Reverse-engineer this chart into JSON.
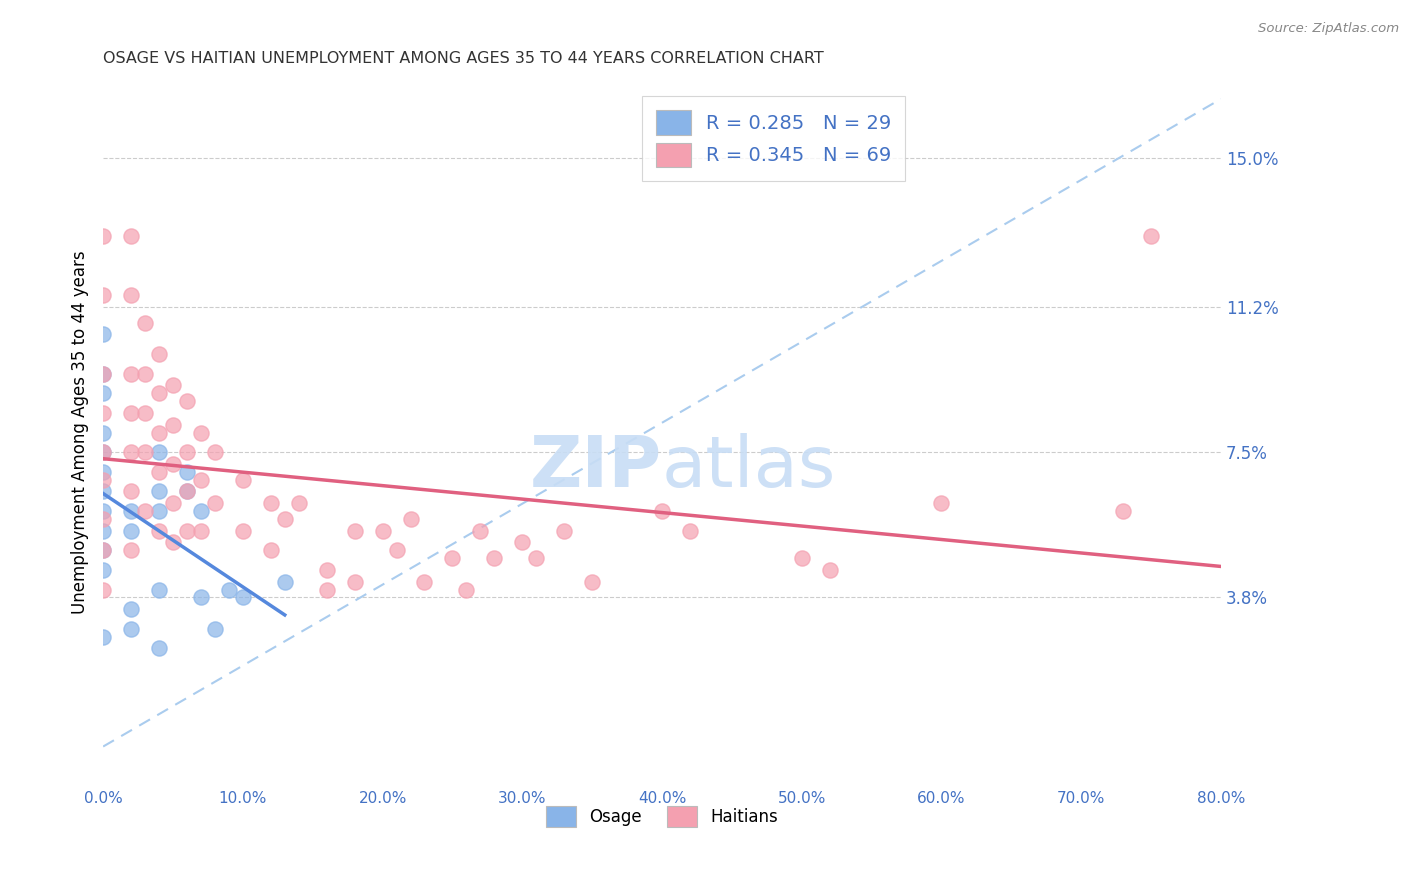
{
  "title": "OSAGE VS HAITIAN UNEMPLOYMENT AMONG AGES 35 TO 44 YEARS CORRELATION CHART",
  "source": "Source: ZipAtlas.com",
  "ylabel": "Unemployment Among Ages 35 to 44 years",
  "xlabel_ticks": [
    "0.0%",
    "10.0%",
    "20.0%",
    "30.0%",
    "40.0%",
    "50.0%",
    "60.0%",
    "70.0%",
    "80.0%"
  ],
  "ytick_labels": [
    "3.8%",
    "7.5%",
    "11.2%",
    "15.0%"
  ],
  "ytick_values": [
    0.038,
    0.075,
    0.112,
    0.15
  ],
  "xlim": [
    0.0,
    0.8
  ],
  "ylim": [
    -0.01,
    0.17
  ],
  "osage_R": 0.285,
  "osage_N": 29,
  "haitian_R": 0.345,
  "haitian_N": 69,
  "osage_color": "#89b4e8",
  "haitian_color": "#f4a0b0",
  "trendline_osage_color": "#5588dd",
  "trendline_haitian_color": "#e06080",
  "dashed_line_color": "#aaccee",
  "legend_color": "#4472C4",
  "background_color": "#ffffff",
  "grid_color": "#cccccc",
  "osage_x": [
    0.0,
    0.0,
    0.0,
    0.0,
    0.0,
    0.0,
    0.0,
    0.0,
    0.0,
    0.0,
    0.0,
    0.0,
    0.02,
    0.02,
    0.02,
    0.02,
    0.04,
    0.04,
    0.04,
    0.04,
    0.04,
    0.06,
    0.06,
    0.07,
    0.07,
    0.08,
    0.09,
    0.1,
    0.13
  ],
  "osage_y": [
    0.105,
    0.095,
    0.09,
    0.08,
    0.075,
    0.07,
    0.065,
    0.06,
    0.055,
    0.05,
    0.045,
    0.028,
    0.06,
    0.055,
    0.035,
    0.03,
    0.075,
    0.065,
    0.06,
    0.04,
    0.025,
    0.07,
    0.065,
    0.06,
    0.038,
    0.03,
    0.04,
    0.038,
    0.042
  ],
  "haitian_x": [
    0.0,
    0.0,
    0.0,
    0.0,
    0.0,
    0.0,
    0.0,
    0.0,
    0.0,
    0.02,
    0.02,
    0.02,
    0.02,
    0.02,
    0.02,
    0.02,
    0.03,
    0.03,
    0.03,
    0.03,
    0.03,
    0.04,
    0.04,
    0.04,
    0.04,
    0.04,
    0.05,
    0.05,
    0.05,
    0.05,
    0.05,
    0.06,
    0.06,
    0.06,
    0.06,
    0.07,
    0.07,
    0.07,
    0.08,
    0.08,
    0.1,
    0.1,
    0.12,
    0.12,
    0.13,
    0.14,
    0.16,
    0.16,
    0.18,
    0.18,
    0.2,
    0.21,
    0.22,
    0.23,
    0.25,
    0.26,
    0.27,
    0.28,
    0.3,
    0.31,
    0.33,
    0.35,
    0.4,
    0.42,
    0.5,
    0.52,
    0.6,
    0.73,
    0.75
  ],
  "haitian_y": [
    0.13,
    0.115,
    0.095,
    0.085,
    0.075,
    0.068,
    0.058,
    0.05,
    0.04,
    0.13,
    0.115,
    0.095,
    0.085,
    0.075,
    0.065,
    0.05,
    0.108,
    0.095,
    0.085,
    0.075,
    0.06,
    0.1,
    0.09,
    0.08,
    0.07,
    0.055,
    0.092,
    0.082,
    0.072,
    0.062,
    0.052,
    0.088,
    0.075,
    0.065,
    0.055,
    0.08,
    0.068,
    0.055,
    0.075,
    0.062,
    0.068,
    0.055,
    0.062,
    0.05,
    0.058,
    0.062,
    0.045,
    0.04,
    0.055,
    0.042,
    0.055,
    0.05,
    0.058,
    0.042,
    0.048,
    0.04,
    0.055,
    0.048,
    0.052,
    0.048,
    0.055,
    0.042,
    0.06,
    0.055,
    0.048,
    0.045,
    0.062,
    0.06,
    0.13
  ]
}
